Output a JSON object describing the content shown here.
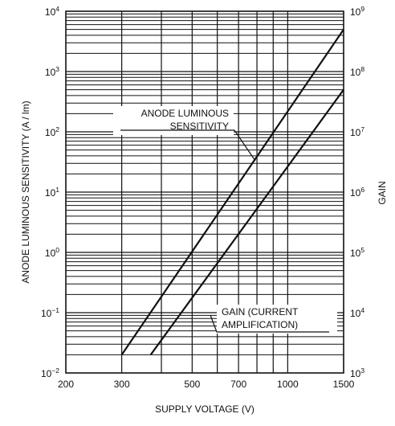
{
  "chart_data": {
    "type": "line",
    "xlabel": "SUPPLY VOLTAGE (V)",
    "ylabel_left": "ANODE LUMINOUS SENSITIVITY  (A / lm)",
    "ylabel_right": "GAIN",
    "x_scale": "log",
    "y_scale": "log",
    "xlim": [
      200,
      1500
    ],
    "ylim_left": [
      0.01,
      10000
    ],
    "ylim_right": [
      1000,
      1000000000
    ],
    "grid": true,
    "x_ticks": [
      {
        "value": 200,
        "label": "200"
      },
      {
        "value": 300,
        "label": "300"
      },
      {
        "value": 500,
        "label": "500"
      },
      {
        "value": 700,
        "label": "700"
      },
      {
        "value": 1000,
        "label": "1000"
      },
      {
        "value": 1500,
        "label": "1500"
      }
    ],
    "y_ticks_left": [
      {
        "value": 0.01,
        "base": "10",
        "exp": "−2"
      },
      {
        "value": 0.1,
        "base": "10",
        "exp": "−1"
      },
      {
        "value": 1,
        "base": "10",
        "exp": "0"
      },
      {
        "value": 10,
        "base": "10",
        "exp": "1"
      },
      {
        "value": 100,
        "base": "10",
        "exp": "2"
      },
      {
        "value": 1000,
        "base": "10",
        "exp": "3"
      },
      {
        "value": 10000,
        "base": "10",
        "exp": "4"
      }
    ],
    "y_ticks_right": [
      {
        "value": 1000,
        "base": "10",
        "exp": "3"
      },
      {
        "value": 10000,
        "base": "10",
        "exp": "4"
      },
      {
        "value": 100000,
        "base": "10",
        "exp": "5"
      },
      {
        "value": 1000000,
        "base": "10",
        "exp": "6"
      },
      {
        "value": 10000000,
        "base": "10",
        "exp": "7"
      },
      {
        "value": 100000000,
        "base": "10",
        "exp": "8"
      },
      {
        "value": 1000000000,
        "base": "10",
        "exp": "9"
      }
    ],
    "series": [
      {
        "name": "ANODE LUMINOUS SENSITIVITY",
        "axis": "left",
        "annotation_lines": [
          "ANODE LUMINOUS",
          "SENSITIVITY"
        ],
        "points": [
          [
            300,
            0.02
          ],
          [
            1500,
            5000
          ]
        ]
      },
      {
        "name": "GAIN (CURRENT AMPLIFICATION)",
        "axis": "right",
        "annotation_lines": [
          "GAIN (CURRENT",
          "AMPLIFICATION)"
        ],
        "points": [
          [
            370,
            2000
          ],
          [
            1500,
            50000000
          ]
        ]
      }
    ],
    "colors": {
      "line": "#111111",
      "grid": "#111111",
      "background": "#ffffff"
    }
  }
}
